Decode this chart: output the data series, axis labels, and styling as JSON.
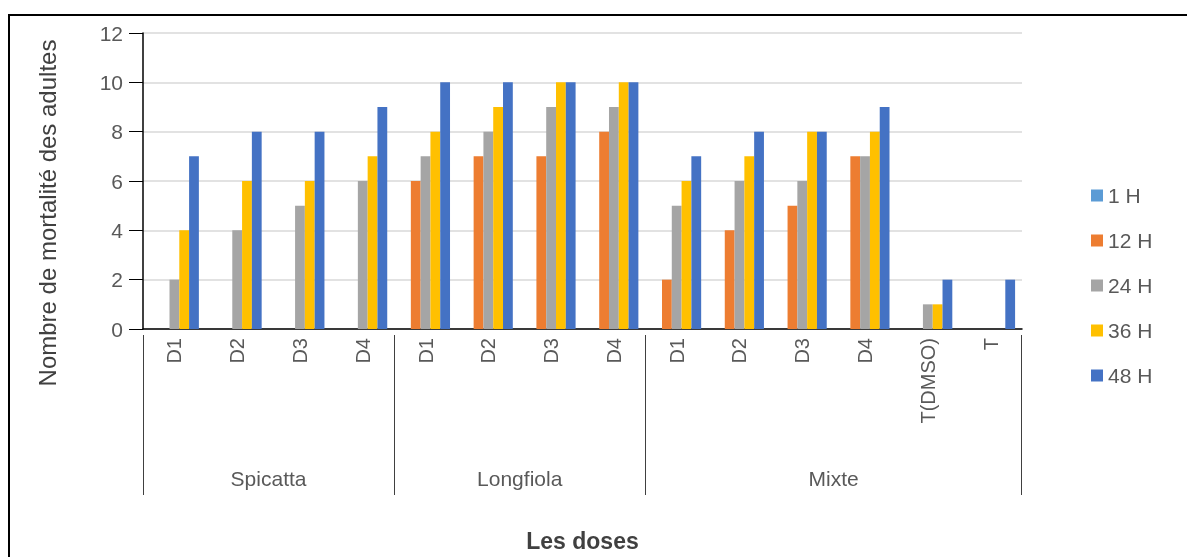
{
  "chart_data": {
    "type": "bar",
    "xlabel": "Les doses",
    "ylabel": "Nombre de mortalité des adultes",
    "categories": [
      "D1",
      "D2",
      "D3",
      "D4",
      "D1",
      "D2",
      "D3",
      "D4",
      "D1",
      "D2",
      "D3",
      "D4",
      "T(DMSO)",
      "T"
    ],
    "series": [
      {
        "name": "1 H",
        "color": "#5b9bd5",
        "values": [
          0,
          0,
          0,
          0,
          0,
          0,
          0,
          0,
          0,
          0,
          0,
          0,
          0,
          0
        ]
      },
      {
        "name": "12 H",
        "color": "#ed7d31",
        "values": [
          0,
          0,
          0,
          0,
          6,
          7,
          7,
          8,
          2,
          4,
          5,
          7,
          0,
          0
        ]
      },
      {
        "name": "24 H",
        "color": "#a5a5a5",
        "values": [
          2,
          4,
          5,
          6,
          7,
          8,
          9,
          9,
          5,
          6,
          6,
          7,
          1,
          0
        ]
      },
      {
        "name": "36 H",
        "color": "#ffc000",
        "values": [
          4,
          6,
          6,
          7,
          8,
          9,
          10,
          10,
          6,
          7,
          8,
          8,
          1,
          0
        ]
      },
      {
        "name": "48 H",
        "color": "#4472c4",
        "values": [
          7,
          8,
          8,
          9,
          10,
          10,
          10,
          10,
          7,
          8,
          8,
          9,
          2,
          2
        ]
      }
    ],
    "ylim": [
      0,
      12
    ],
    "yticks": [
      0,
      2,
      4,
      6,
      8,
      10,
      12
    ],
    "grid": "y",
    "legend": "right",
    "annotations": [
      "Spicatta",
      "Longfiola",
      "Mixte"
    ]
  }
}
